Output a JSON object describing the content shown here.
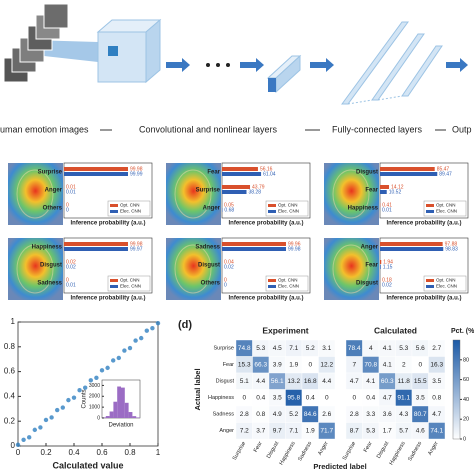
{
  "diagram": {
    "labels": [
      "uman emotion images",
      "Convolutional and nonlinear layers",
      "Fully-connected layers",
      "Outp"
    ]
  },
  "chart_data": [
    {
      "type": "bar",
      "categories": [
        "Surprise",
        "Anger",
        "Others"
      ],
      "xlabel": "Inference probability (a.u.)",
      "xlim": [
        0,
        100
      ],
      "series": [
        {
          "name": "Opt. CNN",
          "color": "#d9502c",
          "values": [
            99.98,
            0.01,
            0
          ]
        },
        {
          "name": "Elec. CNN",
          "color": "#2f5fb3",
          "values": [
            99.99,
            0.01,
            0
          ]
        }
      ]
    },
    {
      "type": "bar",
      "categories": [
        "Fear",
        "Surprise",
        "Anger"
      ],
      "xlabel": "Inference probability (a.u.)",
      "xlim": [
        0,
        100
      ],
      "series": [
        {
          "name": "Opt. CNN",
          "color": "#d9502c",
          "values": [
            56.16,
            43.79,
            0.05
          ]
        },
        {
          "name": "Elec. CNN",
          "color": "#2f5fb3",
          "values": [
            61.04,
            38.28,
            0.68
          ]
        }
      ]
    },
    {
      "type": "bar",
      "categories": [
        "Disgust",
        "Fear",
        "Happiness"
      ],
      "xlabel": "Inference probability (a.u.)",
      "xlim": [
        0,
        100
      ],
      "series": [
        {
          "name": "Opt. CNN",
          "color": "#d9502c",
          "values": [
            85.47,
            14.12,
            0.41
          ]
        },
        {
          "name": "Elec. CNN",
          "color": "#2f5fb3",
          "values": [
            89.47,
            10.52,
            0.01
          ]
        }
      ]
    },
    {
      "type": "bar",
      "categories": [
        "Happiness",
        "Disgust",
        "Sadness"
      ],
      "xlabel": "Inference probability (a.u.)",
      "xlim": [
        0,
        100
      ],
      "series": [
        {
          "name": "Opt. CNN",
          "color": "#d9502c",
          "values": [
            99.98,
            0.02,
            0
          ]
        },
        {
          "name": "Elec. CNN",
          "color": "#2f5fb3",
          "values": [
            99.97,
            0.02,
            0.01
          ]
        }
      ]
    },
    {
      "type": "bar",
      "categories": [
        "Sadness",
        "Disgust",
        "Others"
      ],
      "xlabel": "Inference probability (a.u.)",
      "xlim": [
        0,
        100
      ],
      "series": [
        {
          "name": "Opt. CNN",
          "color": "#d9502c",
          "values": [
            99.96,
            0.04,
            0
          ]
        },
        {
          "name": "Elec. CNN",
          "color": "#2f5fb3",
          "values": [
            99.98,
            0.02,
            0
          ]
        }
      ]
    },
    {
      "type": "bar",
      "categories": [
        "Anger",
        "Fear",
        "Disgust"
      ],
      "xlabel": "Inference probability (a.u.)",
      "xlim": [
        0,
        100
      ],
      "series": [
        {
          "name": "Opt. CNN",
          "color": "#d9502c",
          "values": [
            97.88,
            1.94,
            0.18
          ]
        },
        {
          "name": "Elec. CNN",
          "color": "#2f5fb3",
          "values": [
            98.83,
            1.15,
            0.02
          ]
        }
      ]
    },
    {
      "type": "scatter",
      "xlabel": "Calculated value",
      "color": "#2f7fc1",
      "xlim": [
        0,
        1
      ],
      "ylim": [
        0,
        1
      ],
      "xticks": [
        0,
        0.2,
        0.4,
        0.6,
        0.8,
        1
      ],
      "yticks": [
        0,
        0.2,
        0.4,
        0.6,
        0.8,
        1
      ],
      "x": [
        0,
        0.04,
        0.08,
        0.12,
        0.16,
        0.2,
        0.24,
        0.28,
        0.32,
        0.36,
        0.4,
        0.44,
        0.48,
        0.52,
        0.56,
        0.6,
        0.64,
        0.68,
        0.72,
        0.76,
        0.8,
        0.84,
        0.88,
        0.92,
        0.96,
        1
      ],
      "y": [
        0.01,
        0.05,
        0.07,
        0.13,
        0.15,
        0.21,
        0.23,
        0.29,
        0.31,
        0.37,
        0.39,
        0.45,
        0.47,
        0.53,
        0.55,
        0.61,
        0.63,
        0.69,
        0.71,
        0.77,
        0.79,
        0.85,
        0.87,
        0.93,
        0.95,
        0.99
      ],
      "inset": {
        "type": "histogram",
        "xlabel": "Deviation",
        "ylabel": "Counts",
        "color": "#9b6cc4",
        "bins": [
          -0.05,
          -0.04,
          -0.03,
          -0.02,
          -0.01,
          0,
          0.01,
          0.02,
          0.03,
          0.04,
          0.05
        ],
        "counts": [
          60,
          180,
          600,
          1500,
          2900,
          2800,
          1400,
          550,
          170,
          50
        ],
        "ylim": [
          0,
          3500
        ],
        "yticks": [
          0,
          1000,
          2000,
          3000
        ]
      }
    },
    {
      "type": "heatmap",
      "panel_label": "(d)",
      "title": "Experiment",
      "ylabel": "Actual label",
      "xlabel": "Predicted label",
      "categories": [
        "Surprise",
        "Fear",
        "Disgust",
        "Happiness",
        "Sadness",
        "Anger"
      ],
      "values": [
        [
          74.8,
          5.3,
          4.5,
          7.1,
          5.2,
          3.1
        ],
        [
          15.3,
          66.3,
          3.9,
          1.9,
          0,
          12.2
        ],
        [
          5.1,
          4.4,
          56.1,
          13.2,
          16.8,
          4.4
        ],
        [
          0,
          0.4,
          3.5,
          95.8,
          0.4,
          0
        ],
        [
          2.8,
          0.8,
          4.9,
          5.2,
          84.6,
          2.6
        ],
        [
          7.2,
          3.7,
          9.7,
          7.1,
          1.9,
          71.7
        ]
      ]
    },
    {
      "type": "heatmap",
      "title": "Calculated",
      "categories": [
        "Surprise",
        "Fear",
        "Disgust",
        "Happiness",
        "Sadness",
        "Anger"
      ],
      "values": [
        [
          78.4,
          4,
          4.1,
          5.3,
          5.6,
          2.7
        ],
        [
          7,
          70.8,
          4.1,
          2,
          0,
          16.3
        ],
        [
          4.7,
          4.1,
          60.3,
          11.8,
          15.5,
          3.5
        ],
        [
          0,
          0.4,
          4.7,
          91.1,
          3.5,
          0.8
        ],
        [
          2.8,
          3.3,
          3.6,
          4.3,
          80.7,
          4.7
        ],
        [
          8.7,
          5.3,
          1.7,
          5.7,
          4.6,
          74.1
        ]
      ],
      "colorbar": {
        "label": "Pct. (%)",
        "lim": [
          0,
          100
        ],
        "ticks": [
          0,
          20,
          40,
          60,
          80
        ]
      }
    }
  ]
}
